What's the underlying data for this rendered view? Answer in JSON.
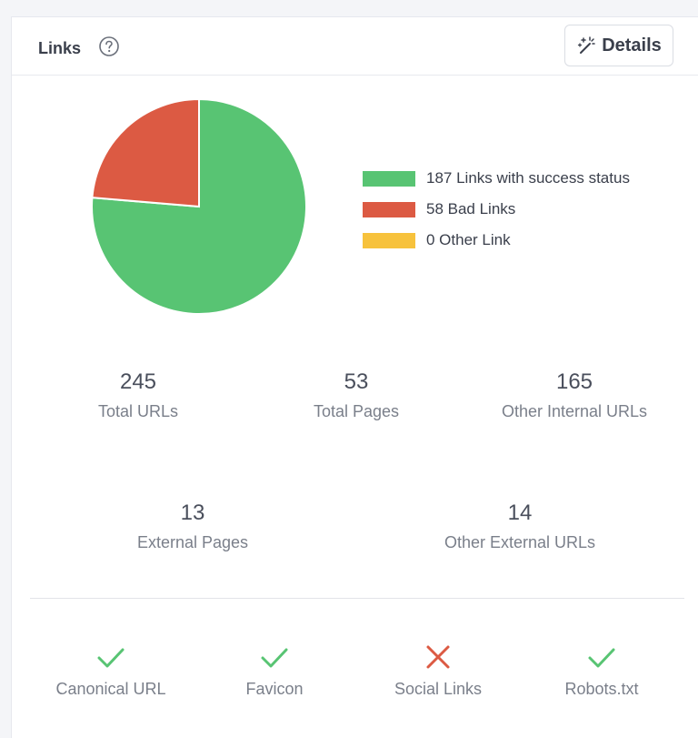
{
  "header": {
    "title": "Links",
    "details_label": "Details"
  },
  "colors": {
    "success": "#58c473",
    "bad": "#dc5a43",
    "other": "#f7c23c"
  },
  "chart_data": {
    "type": "pie",
    "slices": [
      {
        "label": "187 Links with success status",
        "value": 187,
        "color": "#58c473"
      },
      {
        "label": "58 Bad Links",
        "value": 58,
        "color": "#dc5a43"
      },
      {
        "label": "0 Other Link",
        "value": 0,
        "color": "#f7c23c"
      }
    ],
    "legend_position": "right"
  },
  "stats": [
    {
      "value": "245",
      "label": "Total URLs"
    },
    {
      "value": "53",
      "label": "Total Pages"
    },
    {
      "value": "165",
      "label": "Other Internal URLs"
    },
    {
      "value": "13",
      "label": "External Pages"
    },
    {
      "value": "14",
      "label": "Other External URLs"
    }
  ],
  "checks": [
    {
      "label": "Canonical URL",
      "status": "pass",
      "icon": "check-icon"
    },
    {
      "label": "Favicon",
      "status": "pass",
      "icon": "check-icon"
    },
    {
      "label": "Social Links",
      "status": "fail",
      "icon": "cross-icon"
    },
    {
      "label": "Robots.txt",
      "status": "pass",
      "icon": "check-icon"
    }
  ]
}
